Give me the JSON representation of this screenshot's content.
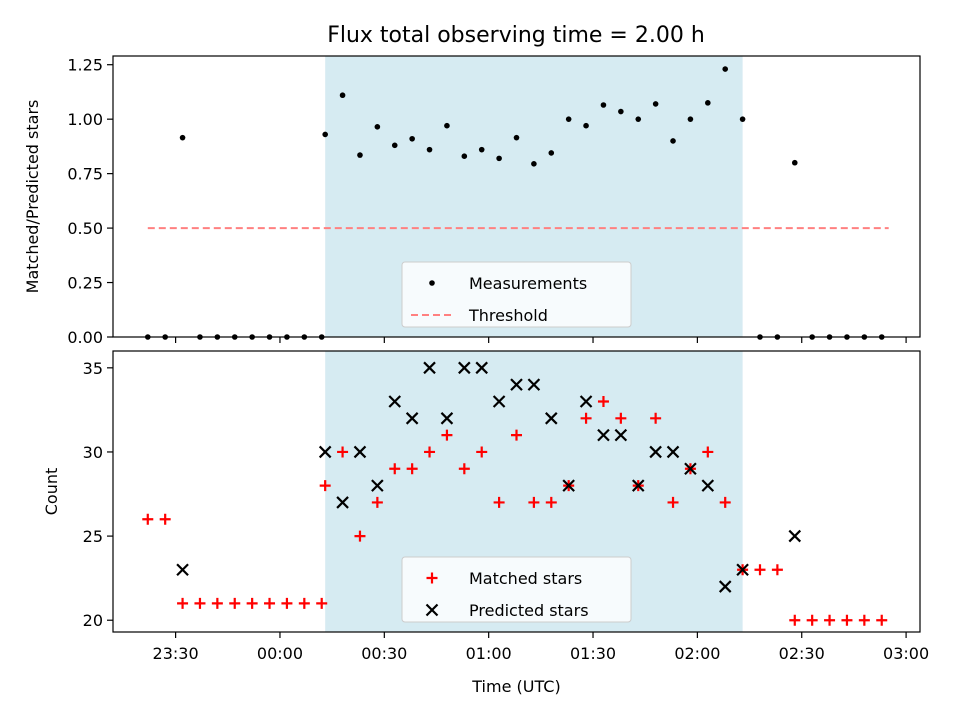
{
  "figure": {
    "title": "Flux total observing time = 2.00 h"
  },
  "chart_data": [
    {
      "type": "scatter",
      "ylabel": "Matched/Predicted stars",
      "xlabel": "",
      "ylim": [
        0.0,
        1.29
      ],
      "xlim": [
        "23:12",
        "03:04"
      ],
      "grid": false,
      "legend_placement": "lower-center",
      "highlight_span": {
        "start": "00:13",
        "end": "02:13",
        "color": "#add8e6"
      },
      "threshold": {
        "label": "Threshold",
        "value": 0.5,
        "x_start": "23:22",
        "x_end": "02:55",
        "color": "#ff8080",
        "style": "dashed"
      },
      "yticks": [
        "0.00",
        "0.25",
        "0.50",
        "0.75",
        "1.00",
        "1.25"
      ],
      "series": [
        {
          "name": "Measurements",
          "marker": "dot",
          "color": "#000000",
          "points": [
            [
              "23:22",
              0
            ],
            [
              "23:27",
              0
            ],
            [
              "23:32",
              0.915
            ],
            [
              "23:37",
              0
            ],
            [
              "23:42",
              0
            ],
            [
              "23:47",
              0
            ],
            [
              "23:52",
              0
            ],
            [
              "23:57",
              0
            ],
            [
              "00:02",
              0
            ],
            [
              "00:07",
              0
            ],
            [
              "00:12",
              0
            ],
            [
              "00:13",
              0.93
            ],
            [
              "00:18",
              1.11
            ],
            [
              "00:23",
              0.835
            ],
            [
              "00:28",
              0.965
            ],
            [
              "00:33",
              0.88
            ],
            [
              "00:38",
              0.91
            ],
            [
              "00:43",
              0.86
            ],
            [
              "00:48",
              0.97
            ],
            [
              "00:53",
              0.83
            ],
            [
              "00:58",
              0.86
            ],
            [
              "01:03",
              0.82
            ],
            [
              "01:08",
              0.915
            ],
            [
              "01:13",
              0.795
            ],
            [
              "01:18",
              0.845
            ],
            [
              "01:23",
              1.0
            ],
            [
              "01:28",
              0.97
            ],
            [
              "01:33",
              1.065
            ],
            [
              "01:38",
              1.035
            ],
            [
              "01:43",
              1.0
            ],
            [
              "01:48",
              1.07
            ],
            [
              "01:53",
              0.9
            ],
            [
              "01:58",
              1.0
            ],
            [
              "02:03",
              1.075
            ],
            [
              "02:08",
              1.23
            ],
            [
              "02:13",
              1.0
            ],
            [
              "02:18",
              0
            ],
            [
              "02:23",
              0
            ],
            [
              "02:28",
              0.8
            ],
            [
              "02:33",
              0
            ],
            [
              "02:38",
              0
            ],
            [
              "02:43",
              0
            ],
            [
              "02:48",
              0
            ],
            [
              "02:53",
              0
            ]
          ]
        }
      ]
    },
    {
      "type": "scatter",
      "ylabel": "Count",
      "xlabel": "Time (UTC)",
      "ylim": [
        19.3,
        36.0
      ],
      "xlim": [
        "23:12",
        "03:04"
      ],
      "grid": false,
      "legend_placement": "lower-center",
      "highlight_span": {
        "start": "00:13",
        "end": "02:13",
        "color": "#add8e6"
      },
      "yticks": [
        "20",
        "25",
        "30",
        "35"
      ],
      "xticks": [
        "23:30",
        "00:00",
        "00:30",
        "01:00",
        "01:30",
        "02:00",
        "02:30",
        "03:00"
      ],
      "series": [
        {
          "name": "Matched stars",
          "marker": "plus",
          "color": "#ff0000",
          "points": [
            [
              "23:22",
              26
            ],
            [
              "23:27",
              26
            ],
            [
              "23:32",
              21
            ],
            [
              "23:37",
              21
            ],
            [
              "23:42",
              21
            ],
            [
              "23:47",
              21
            ],
            [
              "23:52",
              21
            ],
            [
              "23:57",
              21
            ],
            [
              "00:02",
              21
            ],
            [
              "00:07",
              21
            ],
            [
              "00:12",
              21
            ],
            [
              "00:13",
              28
            ],
            [
              "00:18",
              30
            ],
            [
              "00:23",
              25
            ],
            [
              "00:28",
              27
            ],
            [
              "00:33",
              29
            ],
            [
              "00:38",
              29
            ],
            [
              "00:43",
              30
            ],
            [
              "00:48",
              31
            ],
            [
              "00:53",
              29
            ],
            [
              "00:58",
              30
            ],
            [
              "01:03",
              27
            ],
            [
              "01:08",
              31
            ],
            [
              "01:13",
              27
            ],
            [
              "01:18",
              27
            ],
            [
              "01:23",
              28
            ],
            [
              "01:28",
              32
            ],
            [
              "01:33",
              33
            ],
            [
              "01:38",
              32
            ],
            [
              "01:43",
              28
            ],
            [
              "01:48",
              32
            ],
            [
              "01:53",
              27
            ],
            [
              "01:58",
              29
            ],
            [
              "02:03",
              30
            ],
            [
              "02:08",
              27
            ],
            [
              "02:13",
              23
            ],
            [
              "02:18",
              23
            ],
            [
              "02:23",
              23
            ],
            [
              "02:28",
              20
            ],
            [
              "02:33",
              20
            ],
            [
              "02:38",
              20
            ],
            [
              "02:43",
              20
            ],
            [
              "02:48",
              20
            ],
            [
              "02:53",
              20
            ]
          ]
        },
        {
          "name": "Predicted stars",
          "marker": "x",
          "color": "#000000",
          "points": [
            [
              "23:32",
              23
            ],
            [
              "00:13",
              30
            ],
            [
              "00:18",
              27
            ],
            [
              "00:23",
              30
            ],
            [
              "00:28",
              28
            ],
            [
              "00:33",
              33
            ],
            [
              "00:38",
              32
            ],
            [
              "00:43",
              35
            ],
            [
              "00:48",
              32
            ],
            [
              "00:53",
              35
            ],
            [
              "00:58",
              35
            ],
            [
              "01:03",
              33
            ],
            [
              "01:08",
              34
            ],
            [
              "01:13",
              34
            ],
            [
              "01:18",
              32
            ],
            [
              "01:23",
              28
            ],
            [
              "01:28",
              33
            ],
            [
              "01:33",
              31
            ],
            [
              "01:38",
              31
            ],
            [
              "01:43",
              28
            ],
            [
              "01:48",
              30
            ],
            [
              "01:53",
              30
            ],
            [
              "01:58",
              29
            ],
            [
              "02:03",
              28
            ],
            [
              "02:08",
              22
            ],
            [
              "02:13",
              23
            ],
            [
              "02:28",
              25
            ]
          ]
        }
      ]
    }
  ]
}
